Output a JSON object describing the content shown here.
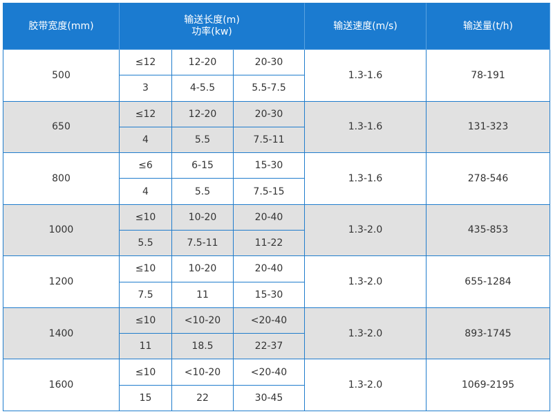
{
  "header": {
    "width": "胶带宽度(mm)",
    "length": "输送长度(m)",
    "power": "功率(kw)",
    "speed": "输送速度(m/s)",
    "capacity": "输送量(t/h)"
  },
  "rows": [
    {
      "width": "500",
      "lengths": [
        "≤12",
        "12-20",
        "20-30"
      ],
      "powers": [
        "3",
        "4-5.5",
        "5.5-7.5"
      ],
      "speed": "1.3-1.6",
      "capacity": "78-191"
    },
    {
      "width": "650",
      "lengths": [
        "≤12",
        "12-20",
        "20-30"
      ],
      "powers": [
        "4",
        "5.5",
        "7.5-11"
      ],
      "speed": "1.3-1.6",
      "capacity": "131-323"
    },
    {
      "width": "800",
      "lengths": [
        "≤6",
        "6-15",
        "15-30"
      ],
      "powers": [
        "4",
        "5.5",
        "7.5-15"
      ],
      "speed": "1.3-1.6",
      "capacity": "278-546"
    },
    {
      "width": "1000",
      "lengths": [
        "≤10",
        "10-20",
        "20-40"
      ],
      "powers": [
        "5.5",
        "7.5-11",
        "11-22"
      ],
      "speed": "1.3-2.0",
      "capacity": "435-853"
    },
    {
      "width": "1200",
      "lengths": [
        "≤10",
        "10-20",
        "20-40"
      ],
      "powers": [
        "7.5",
        "11",
        "15-30"
      ],
      "speed": "1.3-2.0",
      "capacity": "655-1284"
    },
    {
      "width": "1400",
      "lengths": [
        "≤10",
        "<10-20",
        "<20-40"
      ],
      "powers": [
        "11",
        "18.5",
        "22-37"
      ],
      "speed": "1.3-2.0",
      "capacity": "893-1745"
    },
    {
      "width": "1600",
      "lengths": [
        "≤10",
        "<10-20",
        "<20-40"
      ],
      "powers": [
        "15",
        "22",
        "30-45"
      ],
      "speed": "1.3-2.0",
      "capacity": "1069-2195"
    }
  ]
}
